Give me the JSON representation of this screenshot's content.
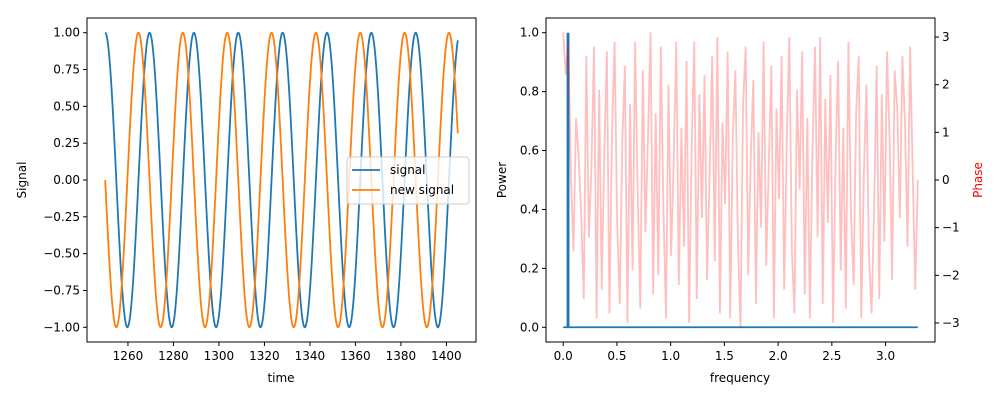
{
  "chart_data": [
    {
      "type": "line",
      "title": "",
      "xlabel": "time",
      "ylabel": "Signal",
      "xlim": [
        1242,
        1413
      ],
      "ylim": [
        -1.1,
        1.1
      ],
      "xticks": [
        "1260",
        "1280",
        "1300",
        "1320",
        "1340",
        "1360",
        "1380",
        "1400"
      ],
      "xtick_values": [
        1260,
        1280,
        1300,
        1320,
        1340,
        1360,
        1380,
        1400
      ],
      "yticks": [
        "1.00",
        "0.75",
        "0.50",
        "0.25",
        "0.00",
        "−0.25",
        "−0.50",
        "−0.75",
        "−1.00"
      ],
      "ytick_values": [
        1,
        0.75,
        0.5,
        0.25,
        0,
        -0.25,
        -0.5,
        -0.75,
        -1
      ],
      "legend_placement": "center-right",
      "series": [
        {
          "name": "signal",
          "color": "#1f77b4",
          "t_range": [
            1250,
            1405
          ],
          "amplitude": 1,
          "period": 19.5,
          "phase_rad": 0
        },
        {
          "name": "new signal",
          "color": "#ff7f0e",
          "t_range": [
            1250,
            1405
          ],
          "amplitude": 1,
          "period": 19.5,
          "phase_rad": 1.5708
        }
      ]
    },
    {
      "type": "line",
      "xlabel": "frequency",
      "ylabel": "Power",
      "y2label": "Phase",
      "y2label_color": "#ff0000",
      "xlim": [
        -0.16,
        3.46
      ],
      "ylim": [
        -0.05,
        1.05
      ],
      "y2lim": [
        -3.4,
        3.4
      ],
      "xticks": [
        "0.0",
        "0.5",
        "1.0",
        "1.5",
        "2.0",
        "2.5",
        "3.0"
      ],
      "xtick_values": [
        0,
        0.5,
        1,
        1.5,
        2,
        2.5,
        3
      ],
      "yticks": [
        "0.0",
        "0.2",
        "0.4",
        "0.6",
        "0.8",
        "1.0"
      ],
      "ytick_values": [
        0,
        0.2,
        0.4,
        0.6,
        0.8,
        1
      ],
      "y2ticks": [
        "3",
        "2",
        "1",
        "0",
        "−1",
        "−2",
        "−3"
      ],
      "y2tick_values": [
        3,
        2,
        1,
        0,
        -1,
        -2,
        -3
      ],
      "power": {
        "name": "power",
        "color": "#1f77b4",
        "freq_range": [
          0,
          3.3
        ],
        "peaks": [
          {
            "freq": 0.04,
            "value": 1.0
          },
          {
            "freq": 0.05,
            "value": 1.0
          }
        ],
        "baseline": 0
      },
      "phase": {
        "name": "phase",
        "color": "#ff0000",
        "alpha": 0.25,
        "freq_range": [
          0,
          3.3
        ],
        "values": [
          3.1,
          2.2,
          2.9,
          0.1,
          -1.5,
          1.3,
          0.5,
          -0.7,
          -2.5,
          2.6,
          -1.2,
          0.3,
          2.8,
          -2.9,
          1.9,
          -2.3,
          0.6,
          2.7,
          -2.8,
          1.0,
          2.9,
          -0.9,
          -2.6,
          0.8,
          2.4,
          -3.0,
          1.6,
          -1.9,
          2.9,
          -0.3,
          -2.7,
          2.3,
          -1.1,
          0.9,
          3.1,
          -2.4,
          1.4,
          -2.0,
          2.8,
          -0.6,
          -2.9,
          2.0,
          -1.6,
          0.4,
          2.9,
          -2.2,
          1.1,
          -1.4,
          2.5,
          -3.0,
          0.7,
          2.9,
          -2.5,
          1.8,
          -0.8,
          2.2,
          -2.1,
          0.2,
          2.6,
          -1.7,
          3.0,
          -2.8,
          1.2,
          -0.5,
          2.7,
          -2.9,
          0.9,
          2.3,
          -1.3,
          -3.1,
          1.6,
          2.8,
          -2.0,
          0.5,
          2.1,
          -2.6,
          1.0,
          -1.0,
          2.9,
          -1.8,
          0.3,
          2.4,
          -2.9,
          1.5,
          -0.4,
          2.6,
          -2.3,
          0.8,
          3.0,
          -1.5,
          -2.8,
          1.9,
          -0.2,
          2.7,
          -2.4,
          1.3,
          -2.9,
          0.6,
          2.8,
          -1.2,
          3.0,
          -2.6,
          1.7,
          -0.9,
          2.2,
          -3.0,
          0.4,
          2.5,
          -1.9,
          1.1,
          -2.7,
          2.9,
          -0.7,
          -2.2,
          1.4,
          2.6,
          -2.9,
          0.1,
          2.0,
          -1.6,
          -2.8,
          -0.6,
          2.4,
          -2.5,
          1.8,
          -1.3,
          2.7,
          0.9,
          -2.1,
          2.3,
          1.5,
          -0.8,
          2.6,
          1.2,
          -1.4,
          2.8,
          0.2,
          -2.3,
          0.0
        ]
      }
    }
  ]
}
